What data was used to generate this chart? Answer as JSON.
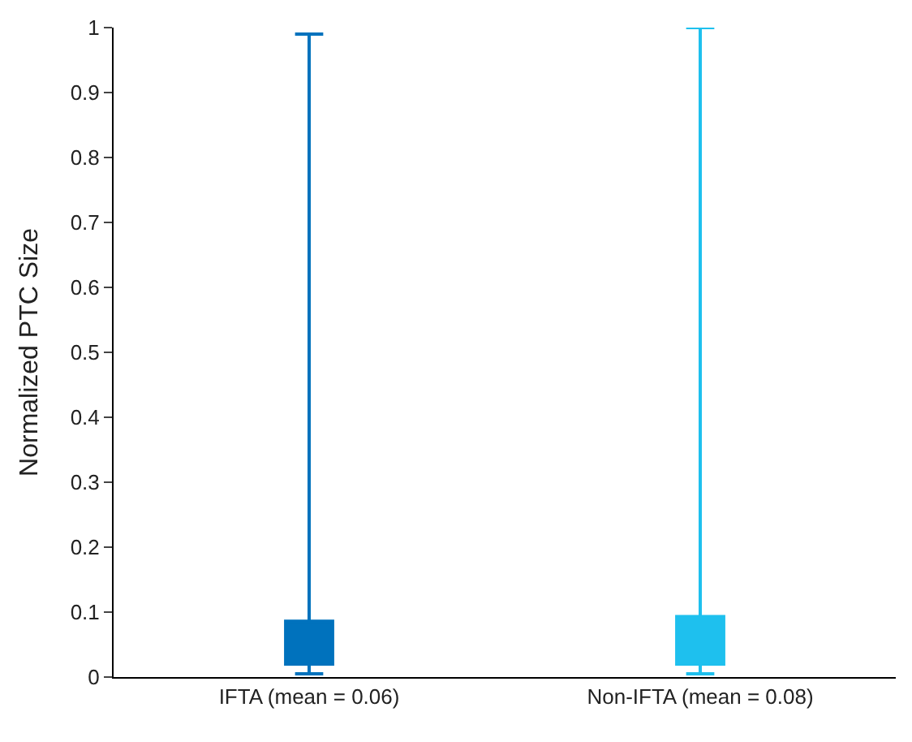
{
  "chart_data": {
    "type": "box",
    "ylabel": "Normalized PTC Size",
    "categories": [
      "IFTA (mean = 0.06)",
      "Non-IFTA (mean = 0.08)"
    ],
    "colors": [
      "#0072bd",
      "#1ec0ee"
    ],
    "boxes": [
      {
        "low": 0.005,
        "q1": 0.02,
        "median": 0.037,
        "q3": 0.086,
        "high": 0.99
      },
      {
        "low": 0.005,
        "q1": 0.02,
        "median": 0.037,
        "q3": 0.093,
        "high": 1.0
      }
    ],
    "ylim": [
      0,
      1
    ],
    "yticks": [
      0,
      0.1,
      0.2,
      0.3,
      0.4,
      0.5,
      0.6,
      0.7,
      0.8,
      0.9,
      1
    ]
  }
}
